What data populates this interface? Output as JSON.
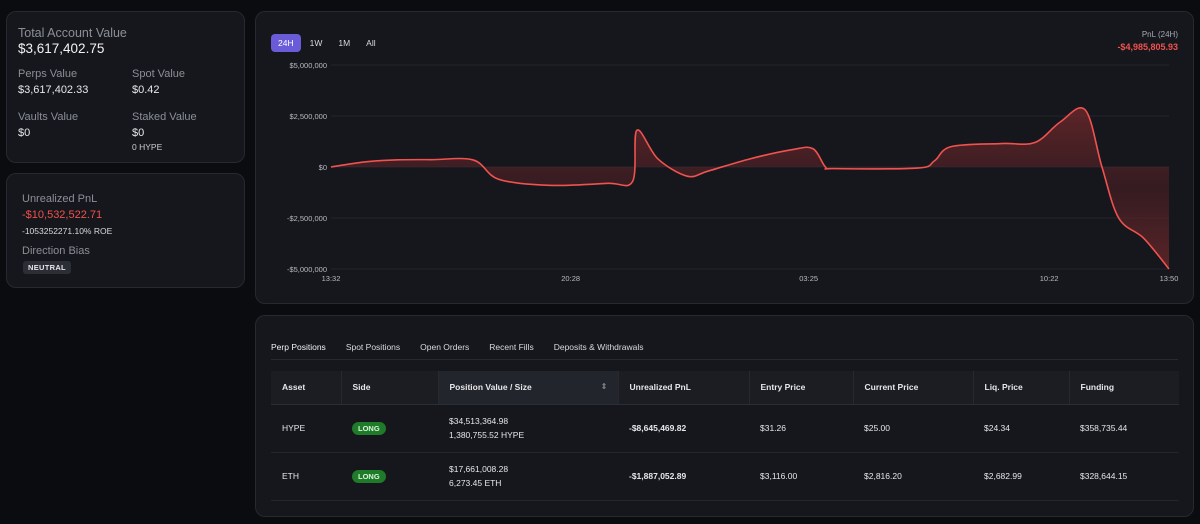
{
  "account": {
    "total_label": "Total Account Value",
    "total_value": "$3,617,402.75",
    "perps_label": "Perps Value",
    "perps_value": "$3,617,402.33",
    "spot_label": "Spot Value",
    "spot_value": "$0.42",
    "vaults_label": "Vaults Value",
    "vaults_value": "$0",
    "staked_label": "Staked Value",
    "staked_value": "$0",
    "staked_sub": "0 HYPE"
  },
  "pnl": {
    "unrealized_label": "Unrealized PnL",
    "unrealized_value": "-$10,532,522.71",
    "roe": "-1053252271.10% ROE",
    "bias_label": "Direction Bias",
    "bias_value": "NEUTRAL"
  },
  "chart": {
    "ranges": [
      "24H",
      "1W",
      "1M",
      "All"
    ],
    "active_range": "24H",
    "pnl_label": "PnL (24H)",
    "pnl_value": "-$4,985,805.93",
    "colors": {
      "line": "#f0524f",
      "fill_pos": "#7a2a2d",
      "fill_neg": "#4a1f24",
      "accent": "#6a5cd8"
    }
  },
  "chart_data": {
    "type": "area",
    "title": "",
    "xlabel": "",
    "ylabel": "",
    "y_ticks": [
      "$5,000,000",
      "$2,500,000",
      "$0",
      "-$2,500,000",
      "-$5,000,000"
    ],
    "x_ticks": [
      "13:32",
      "20:28",
      "03:25",
      "10:22",
      "13:50"
    ],
    "ylim": [
      -5000000,
      5000000
    ],
    "grid": true,
    "series": [
      {
        "values": [
          [
            0,
            0
          ],
          [
            0.04,
            250000
          ],
          [
            0.08,
            350000
          ],
          [
            0.12,
            360000
          ],
          [
            0.17,
            340000
          ],
          [
            0.2,
            -600000
          ],
          [
            0.26,
            -900000
          ],
          [
            0.33,
            -800000
          ],
          [
            0.36,
            -700000
          ],
          [
            0.365,
            1800000
          ],
          [
            0.39,
            400000
          ],
          [
            0.425,
            -450000
          ],
          [
            0.45,
            -200000
          ],
          [
            0.5,
            400000
          ],
          [
            0.55,
            850000
          ],
          [
            0.575,
            900000
          ],
          [
            0.59,
            0
          ],
          [
            0.6,
            -80000
          ],
          [
            0.7,
            -50000
          ],
          [
            0.72,
            300000
          ],
          [
            0.74,
            1000000
          ],
          [
            0.8,
            1150000
          ],
          [
            0.84,
            1200000
          ],
          [
            0.87,
            2200000
          ],
          [
            0.9,
            2800000
          ],
          [
            0.92,
            0
          ],
          [
            0.94,
            -2500000
          ],
          [
            0.97,
            -3500000
          ],
          [
            1.0,
            -5000000
          ]
        ]
      }
    ]
  },
  "positions": {
    "tabs": [
      "Perp Positions",
      "Spot Positions",
      "Open Orders",
      "Recent Fills",
      "Deposits & Withdrawals"
    ],
    "columns": [
      "Asset",
      "Side",
      "Position Value / Size",
      "Unrealized PnL",
      "Entry Price",
      "Current Price",
      "Liq. Price",
      "Funding"
    ],
    "rows": [
      {
        "asset": "HYPE",
        "side": "LONG",
        "value": "$34,513,364.98",
        "size": "1,380,755.52 HYPE",
        "upnl": "-$8,645,469.82",
        "entry": "$31.26",
        "current": "$25.00",
        "liq": "$24.34",
        "funding": "$358,735.44"
      },
      {
        "asset": "ETH",
        "side": "LONG",
        "value": "$17,661,008.28",
        "size": "6,273.45 ETH",
        "upnl": "-$1,887,052.89",
        "entry": "$3,116.00",
        "current": "$2,816.20",
        "liq": "$2,682.99",
        "funding": "$328,644.15"
      }
    ]
  }
}
